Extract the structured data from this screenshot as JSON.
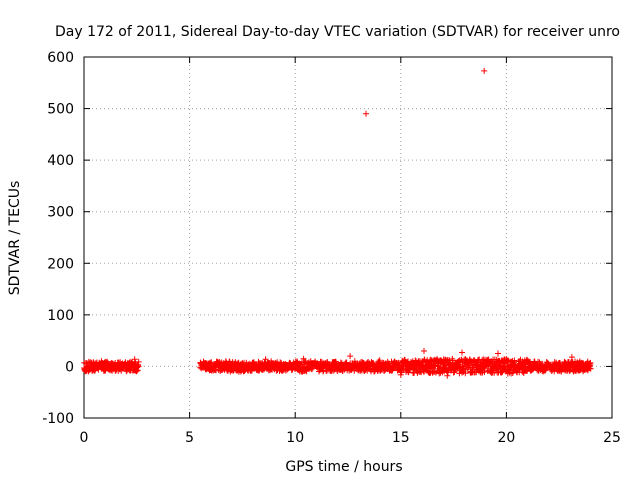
{
  "chart_data": {
    "type": "scatter",
    "title": "Day 172 of 2011, Sidereal Day-to-day VTEC variation (SDTVAR) for receiver unro",
    "xlabel": "GPS time / hours",
    "ylabel": "SDTVAR / TECUs",
    "xlim": [
      0,
      25
    ],
    "ylim": [
      -100,
      600
    ],
    "xticks": [
      0,
      5,
      10,
      15,
      20,
      25
    ],
    "yticks": [
      -100,
      0,
      100,
      200,
      300,
      400,
      500,
      600
    ],
    "grid": true,
    "marker": "+",
    "color": "#ff0000",
    "series": [
      {
        "name": "SDTVAR",
        "segments": [
          {
            "x_start": 0.0,
            "x_end": 2.6,
            "spread": 9
          },
          {
            "x_start": 5.5,
            "x_end": 24.0,
            "spread": 9
          }
        ],
        "outliers": [
          {
            "x": 13.35,
            "y": 490
          },
          {
            "x": 18.95,
            "y": 573
          },
          {
            "x": 16.1,
            "y": 30
          },
          {
            "x": 17.9,
            "y": 27
          },
          {
            "x": 19.6,
            "y": 25
          },
          {
            "x": 12.6,
            "y": 20
          },
          {
            "x": 8.6,
            "y": 14
          },
          {
            "x": 10.4,
            "y": 15
          },
          {
            "x": 14.0,
            "y": 12
          },
          {
            "x": 17.2,
            "y": -18
          },
          {
            "x": 15.0,
            "y": -16
          },
          {
            "x": 23.1,
            "y": 18
          },
          {
            "x": 2.4,
            "y": 14
          }
        ]
      }
    ]
  }
}
